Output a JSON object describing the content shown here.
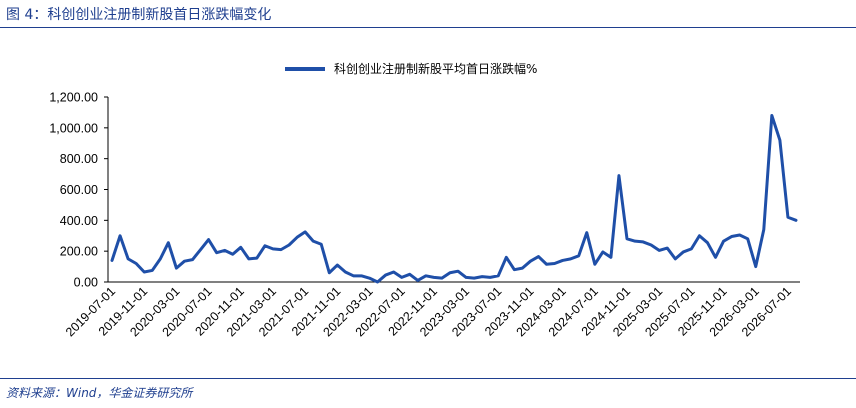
{
  "figure": {
    "title": "图 4：科创创业注册制新股首日涨跌幅变化",
    "source": "资料来源：Wind，华金证券研究所"
  },
  "colors": {
    "series": "#1f4fa8",
    "brand": "#1f3f8f"
  },
  "chart_data": {
    "type": "line",
    "series": [
      {
        "name": "科创创业注册制新股平均首日涨跌幅%",
        "values": [
          140,
          300,
          150,
          120,
          65,
          75,
          150,
          255,
          90,
          135,
          145,
          210,
          275,
          190,
          205,
          180,
          225,
          150,
          155,
          235,
          215,
          210,
          240,
          290,
          325,
          265,
          245,
          60,
          110,
          65,
          40,
          40,
          25,
          0,
          45,
          65,
          30,
          50,
          10,
          40,
          30,
          25,
          60,
          70,
          30,
          25,
          35,
          30,
          40,
          160,
          80,
          90,
          135,
          165,
          115,
          120,
          140,
          150,
          170,
          320,
          115,
          195,
          160,
          690,
          280,
          265,
          260,
          240,
          205,
          220,
          150,
          195,
          215,
          300,
          255,
          160,
          265,
          295,
          305,
          280,
          100,
          340,
          1080,
          920,
          420,
          400
        ]
      }
    ],
    "x_tick_labels": [
      "2019-07-01",
      "2019-11-01",
      "2020-03-01",
      "2020-07-01",
      "2020-11-01",
      "2021-03-01",
      "2021-07-01",
      "2021-11-01",
      "2022-03-01",
      "2022-07-01",
      "2022-11-01",
      "2023-03-01",
      "2023-07-01",
      "2023-11-01",
      "2024-03-01",
      "2024-07-01",
      "2024-11-01",
      "2025-03-01",
      "2025-07-01",
      "2025-11-01",
      "2026-03-01",
      "2026-07-01"
    ],
    "y_tick_labels": [
      "0.00",
      "200.00",
      "400.00",
      "600.00",
      "800.00",
      "1,000.00",
      "1,200.00"
    ],
    "ylim": [
      0,
      1200
    ],
    "legend_position": "top-center",
    "grid": false
  }
}
